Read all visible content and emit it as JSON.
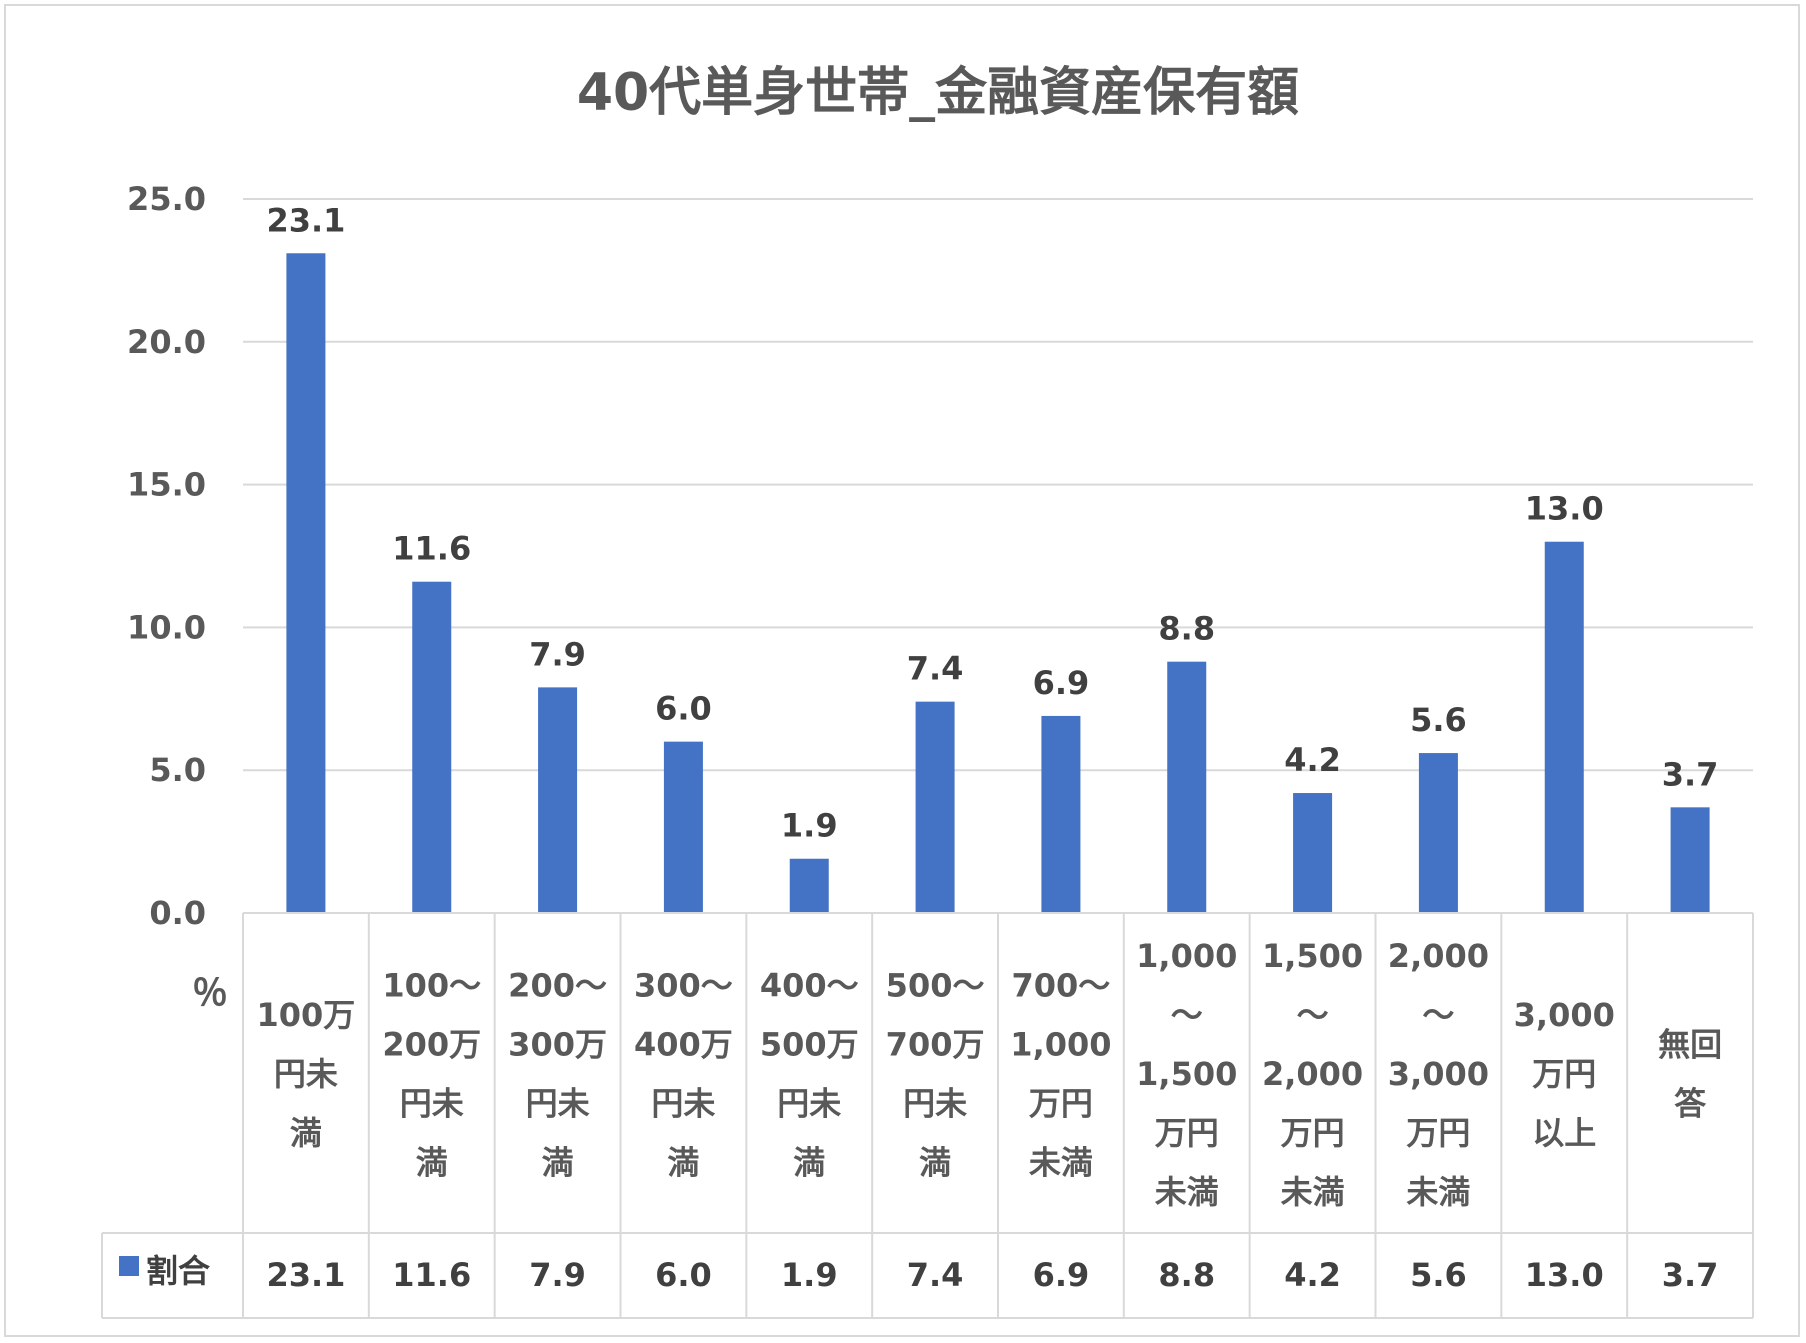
{
  "chart_data": {
    "type": "bar",
    "title": "40代単身世帯_金融資産保有額",
    "ylabel": "％",
    "ylim": [
      0,
      25
    ],
    "yticks": [
      "0.0",
      "5.0",
      "10.0",
      "15.0",
      "20.0",
      "25.0"
    ],
    "grid": true,
    "bar_color": "#4472c4",
    "categories": [
      [
        "100万",
        "円未",
        "満"
      ],
      [
        "100～",
        "200万",
        "円未",
        "満"
      ],
      [
        "200～",
        "300万",
        "円未",
        "満"
      ],
      [
        "300～",
        "400万",
        "円未",
        "満"
      ],
      [
        "400～",
        "500万",
        "円未",
        "満"
      ],
      [
        "500～",
        "700万",
        "円未",
        "満"
      ],
      [
        "700～",
        "1,000",
        "万円",
        "未満"
      ],
      [
        "1,000",
        "～",
        "1,500",
        "万円",
        "未満"
      ],
      [
        "1,500",
        "～",
        "2,000",
        "万円",
        "未満"
      ],
      [
        "2,000",
        "～",
        "3,000",
        "万円",
        "未満"
      ],
      [
        "3,000",
        "万円",
        "以上"
      ],
      [
        "無回",
        "答"
      ]
    ],
    "series": [
      {
        "name": "割合",
        "values": [
          23.1,
          11.6,
          7.9,
          6.0,
          1.9,
          7.4,
          6.9,
          8.8,
          4.2,
          5.6,
          13.0,
          3.7
        ],
        "labels": [
          "23.1",
          "11.6",
          "7.9",
          "6.0",
          "1.9",
          "7.4",
          "6.9",
          "8.8",
          "4.2",
          "5.6",
          "13.0",
          "3.7"
        ]
      }
    ],
    "data_table": true
  }
}
